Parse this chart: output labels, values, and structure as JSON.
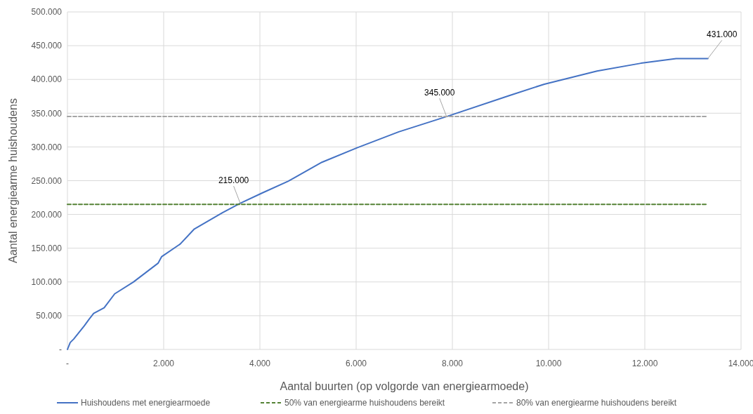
{
  "chart_data": {
    "type": "line",
    "xlabel": "Aantal buurten (op volgorde van energiearmoede)",
    "ylabel": "Aantal energiearme huishoudens",
    "xlim": [
      0,
      14000
    ],
    "xticks": [
      {
        "value": 0,
        "label": "-"
      },
      {
        "value": 2000,
        "label": "2.000"
      },
      {
        "value": 4000,
        "label": "4.000"
      },
      {
        "value": 6000,
        "label": "6.000"
      },
      {
        "value": 8000,
        "label": "8.000"
      },
      {
        "value": 10000,
        "label": "10.000"
      },
      {
        "value": 12000,
        "label": "12.000"
      },
      {
        "value": 14000,
        "label": "14.000"
      }
    ],
    "ylim": [
      0,
      500000
    ],
    "yticks": [
      {
        "value": 0,
        "label": "-"
      },
      {
        "value": 50000,
        "label": "50.000"
      },
      {
        "value": 100000,
        "label": "100.000"
      },
      {
        "value": 150000,
        "label": "150.000"
      },
      {
        "value": 200000,
        "label": "200.000"
      },
      {
        "value": 250000,
        "label": "250.000"
      },
      {
        "value": 300000,
        "label": "300.000"
      },
      {
        "value": 350000,
        "label": "350.000"
      },
      {
        "value": 400000,
        "label": "400.000"
      },
      {
        "value": 450000,
        "label": "450.000"
      },
      {
        "value": 500000,
        "label": "500.000"
      }
    ],
    "grid": true,
    "legend": "bottom",
    "marker": "none",
    "series": [
      {
        "name": "Huishoudens met energiearmoede",
        "color": "#4472c4",
        "line_style": "solid",
        "x": [
          0,
          58,
          131,
          350,
          448,
          545,
          763,
          982,
          1372,
          1883,
          1956,
          2346,
          2638,
          3222,
          3586,
          4048,
          4584,
          5289,
          6019,
          6886,
          7880,
          9182,
          9912,
          11007,
          11920,
          12650,
          13310
        ],
        "values": [
          0,
          10300,
          15500,
          35000,
          44600,
          53300,
          61800,
          82400,
          99900,
          127700,
          137300,
          156300,
          178500,
          202600,
          216300,
          231800,
          249000,
          277300,
          298700,
          322400,
          345000,
          376000,
          393000,
          412400,
          424000,
          430800,
          431000
        ]
      },
      {
        "name": "50% van energiearme huishoudens bereikt",
        "color": "#548235",
        "line_style": "dashed",
        "x": [
          0,
          13310
        ],
        "values": [
          215000,
          215000
        ]
      },
      {
        "name": "80% van energiearme huishoudens bereikt",
        "color": "#a5a5a5",
        "line_style": "dashed",
        "x": [
          0,
          13310
        ],
        "values": [
          345000,
          345000
        ]
      }
    ],
    "annotations": [
      {
        "text": "215.000",
        "x": 3600,
        "y": 215000
      },
      {
        "text": "345.000",
        "x": 7880,
        "y": 345000
      },
      {
        "text": "431.000",
        "x": 13310,
        "y": 431000
      }
    ]
  }
}
